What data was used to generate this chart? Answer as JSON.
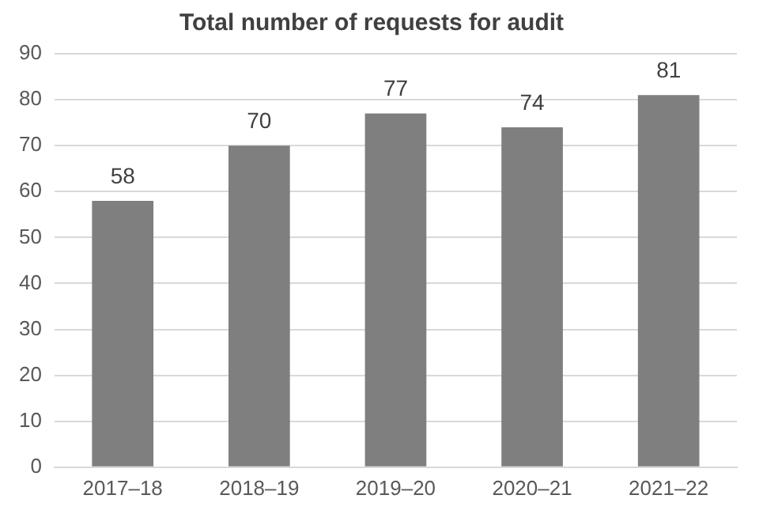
{
  "chart_data": {
    "type": "bar",
    "title": "Total number of requests for audit",
    "categories": [
      "2017–18",
      "2018–19",
      "2019–20",
      "2020–21",
      "2021–22"
    ],
    "values": [
      58,
      70,
      77,
      74,
      81
    ],
    "color": "#7f7f7f",
    "data_labels": true,
    "ylim": [
      0,
      90
    ],
    "yticks": [
      0,
      10,
      20,
      30,
      40,
      50,
      60,
      70,
      80,
      90
    ],
    "grid": "y",
    "legend": false
  }
}
